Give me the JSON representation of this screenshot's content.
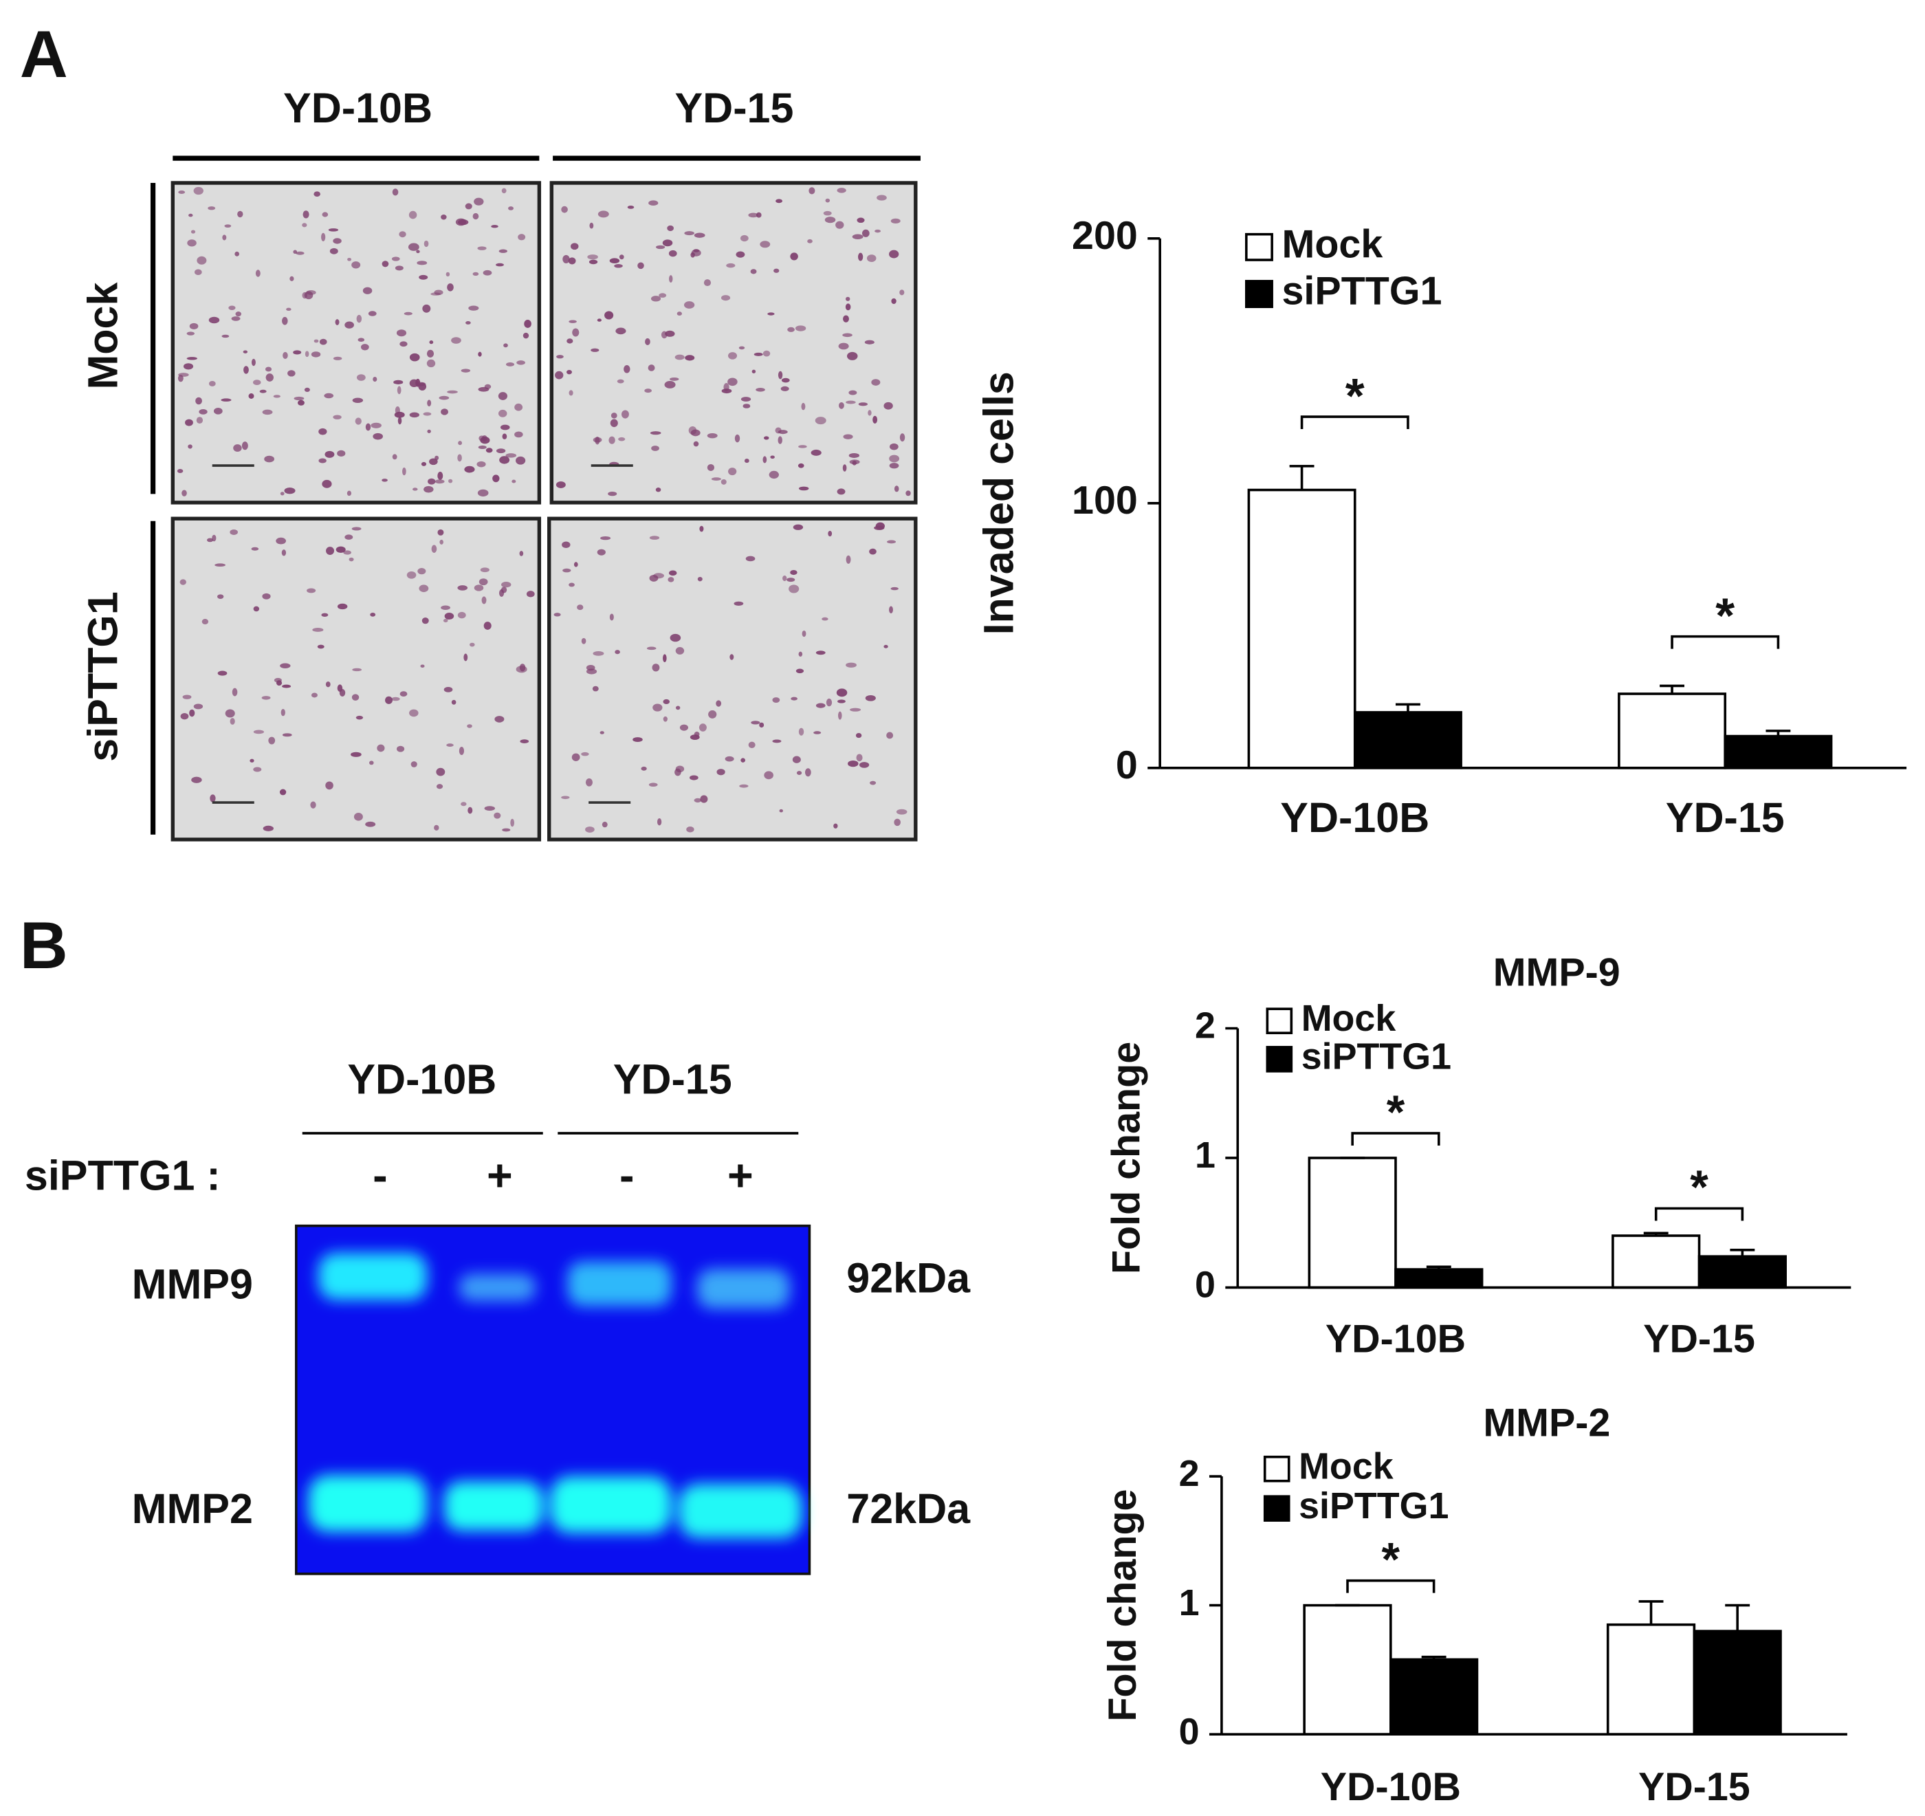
{
  "panels": {
    "a": {
      "label": "A",
      "images": {
        "columns": [
          "YD-10B",
          "YD-15"
        ],
        "rows": [
          "Mock",
          "siPTTG1"
        ]
      }
    },
    "b": {
      "label": "B",
      "gel": {
        "columns": [
          "YD-10B",
          "YD-15"
        ],
        "treatment_label": "siPTTG1 :",
        "lanes": [
          "-",
          "+",
          "-",
          "+"
        ],
        "bands": [
          {
            "name": "MMP9",
            "size": "92kDa"
          },
          {
            "name": "MMP2",
            "size": "72kDa"
          }
        ]
      }
    }
  },
  "chart_data": [
    {
      "type": "bar",
      "y_label": "Invaded cells",
      "categories": [
        "YD-10B",
        "YD-15"
      ],
      "series": [
        {
          "name": "Mock",
          "color": "#ffffff",
          "values": [
            105,
            28
          ],
          "errors": [
            9,
            3
          ]
        },
        {
          "name": "siPTTG1",
          "color": "#000000",
          "values": [
            21,
            12
          ],
          "errors": [
            3,
            2
          ]
        }
      ],
      "ylim": [
        0,
        200
      ],
      "yticks": [
        0,
        100,
        200
      ],
      "legend": "upper left",
      "significance": [
        "*",
        "*"
      ]
    },
    {
      "type": "bar",
      "title": "MMP-9",
      "y_label": "Fold change",
      "categories": [
        "YD-10B",
        "YD-15"
      ],
      "series": [
        {
          "name": "Mock",
          "color": "#ffffff",
          "values": [
            1,
            0.4
          ],
          "errors": [
            0,
            0.02
          ]
        },
        {
          "name": "siPTTG1",
          "color": "#000000",
          "values": [
            0.14,
            0.24
          ],
          "errors": [
            0.02,
            0.05
          ]
        }
      ],
      "ylim": [
        0,
        2
      ],
      "yticks": [
        0,
        1,
        2
      ],
      "legend": "upper left",
      "significance": [
        "*",
        "*"
      ]
    },
    {
      "type": "bar",
      "title": "MMP-2",
      "y_label": "Fold change",
      "categories": [
        "YD-10B",
        "YD-15"
      ],
      "series": [
        {
          "name": "Mock",
          "color": "#ffffff",
          "values": [
            1,
            0.85
          ],
          "errors": [
            0,
            0.18
          ]
        },
        {
          "name": "siPTTG1",
          "color": "#000000",
          "values": [
            0.58,
            0.8
          ],
          "errors": [
            0.02,
            0.2
          ]
        }
      ],
      "ylim": [
        0,
        2
      ],
      "yticks": [
        0,
        1,
        2
      ],
      "legend": "upper left",
      "significance": [
        "*",
        null
      ]
    }
  ]
}
